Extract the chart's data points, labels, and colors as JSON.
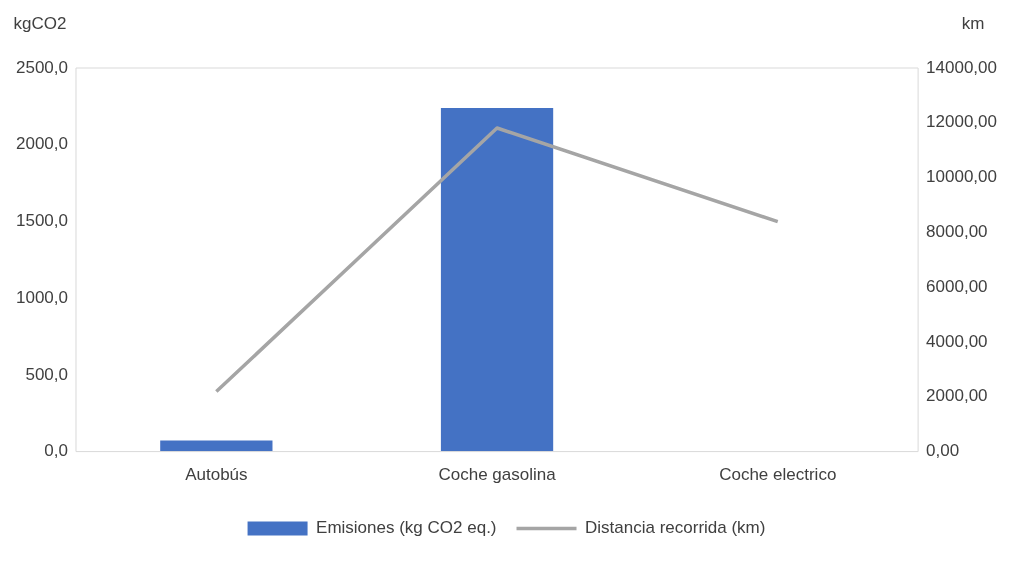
{
  "chart_data": {
    "type": "bar",
    "categories": [
      "Autobús",
      "Coche gasolina",
      "Coche electrico"
    ],
    "ylabel": "kgCO2",
    "y2label": "km",
    "series": [
      {
        "name": "Emisiones (kg CO2 eq.)",
        "color": "#4472c4",
        "values": [
          72,
          2240,
          0
        ]
      },
      {
        "name": "Distancia recorrida (km)",
        "type": "line",
        "axis": "y2",
        "color": "#a5a5a5",
        "values": [
          2190,
          11810,
          8390
        ],
        "marker": "none"
      }
    ],
    "ylim": [
      0,
      2500
    ],
    "yticks": [
      {
        "value": 0,
        "label": "0,0"
      },
      {
        "value": 500,
        "label": "500,0"
      },
      {
        "value": 1000,
        "label": "1000,0"
      },
      {
        "value": 1500,
        "label": "1500,0"
      },
      {
        "value": 2000,
        "label": "2000,0"
      },
      {
        "value": 2500,
        "label": "2500,0"
      }
    ],
    "y2lim": [
      0,
      14000
    ],
    "y2ticks": [
      {
        "value": 0,
        "label": "0,00"
      },
      {
        "value": 2000,
        "label": "2000,00"
      },
      {
        "value": 4000,
        "label": "4000,00"
      },
      {
        "value": 6000,
        "label": "6000,00"
      },
      {
        "value": 8000,
        "label": "8000,00"
      },
      {
        "value": 10000,
        "label": "10000,00"
      },
      {
        "value": 12000,
        "label": "12000,00"
      },
      {
        "value": 14000,
        "label": "14000,00"
      }
    ],
    "grid": false,
    "legend": "bottom"
  }
}
